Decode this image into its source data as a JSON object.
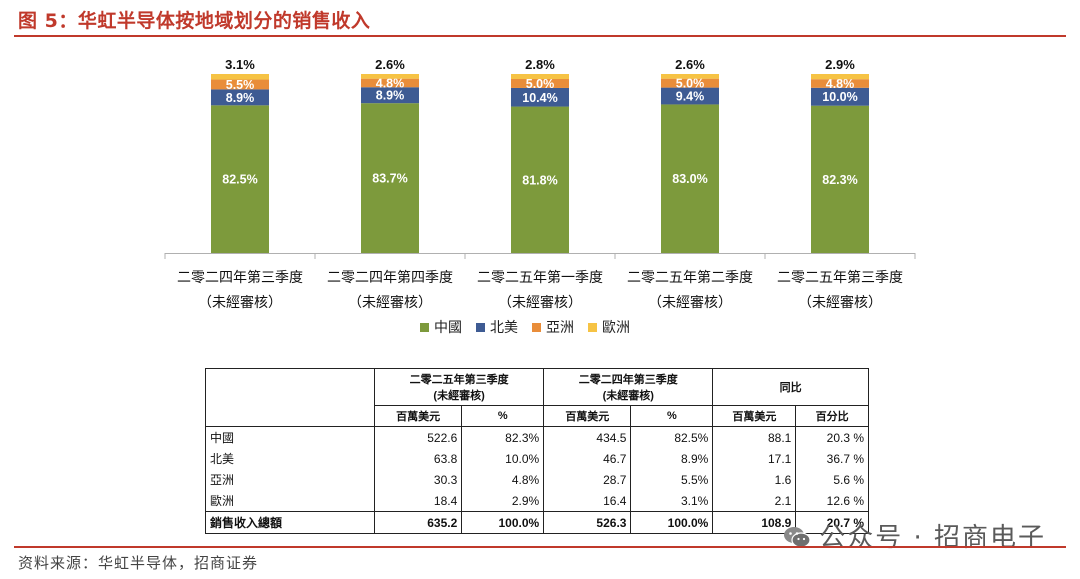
{
  "figure_title": "图 5：华虹半导体按地域划分的销售收入",
  "source": "资料来源：华虹半导体，招商证券",
  "watermark": "公众号 · 招商电子",
  "chart_data": {
    "type": "bar",
    "stacked": true,
    "categories": [
      "二零二四年第三季度",
      "二零二四年第四季度",
      "二零二五年第一季度",
      "二零二五年第二季度",
      "二零二五年第三季度"
    ],
    "category_sublabel": "（未經審核）",
    "series": [
      {
        "name": "中國",
        "color": "#7d9a3c",
        "values": [
          82.5,
          83.7,
          81.8,
          83.0,
          82.3
        ],
        "labels": [
          "82.5%",
          "83.7%",
          "81.8%",
          "83.0%",
          "82.3%"
        ]
      },
      {
        "name": "北美",
        "color": "#3e5b93",
        "values": [
          8.9,
          8.9,
          10.4,
          9.4,
          10.0
        ],
        "labels": [
          "8.9%",
          "8.9%",
          "10.4%",
          "9.4%",
          "10.0%"
        ]
      },
      {
        "name": "亞洲",
        "color": "#e98d3a",
        "values": [
          5.5,
          4.8,
          5.0,
          5.0,
          4.8
        ],
        "labels": [
          "5.5%",
          "4.8%",
          "5.0%",
          "5.0%",
          "4.8%"
        ]
      },
      {
        "name": "歐洲",
        "color": "#f6c344",
        "values": [
          3.1,
          2.6,
          2.8,
          2.6,
          2.9
        ],
        "labels": [
          "3.1%",
          "2.6%",
          "2.8%",
          "2.6%",
          "2.9%"
        ]
      }
    ],
    "ylim": [
      0,
      100
    ],
    "legend_position": "bottom"
  },
  "table": {
    "group_headers": [
      {
        "line1": "二零二五年第三季度",
        "line2": "(未經審核)"
      },
      {
        "line1": "二零二四年第三季度",
        "line2": "(未經審核)"
      },
      {
        "line1": "同比",
        "line2": ""
      }
    ],
    "unit_headers": [
      "百萬美元",
      "%",
      "百萬美元",
      "%",
      "百萬美元",
      "百分比"
    ],
    "rows": [
      {
        "region": "中國",
        "cells": [
          "522.6",
          "82.3%",
          "434.5",
          "82.5%",
          "88.1",
          "20.3 %"
        ]
      },
      {
        "region": "北美",
        "cells": [
          "63.8",
          "10.0%",
          "46.7",
          "8.9%",
          "17.1",
          "36.7 %"
        ]
      },
      {
        "region": "亞洲",
        "cells": [
          "30.3",
          "4.8%",
          "28.7",
          "5.5%",
          "1.6",
          "5.6 %"
        ]
      },
      {
        "region": "歐洲",
        "cells": [
          "18.4",
          "2.9%",
          "16.4",
          "3.1%",
          "2.1",
          "12.6 %"
        ]
      }
    ],
    "total": {
      "region": "銷售收入總額",
      "cells": [
        "635.2",
        "100.0%",
        "526.3",
        "100.0%",
        "108.9",
        "20.7 %"
      ]
    }
  }
}
